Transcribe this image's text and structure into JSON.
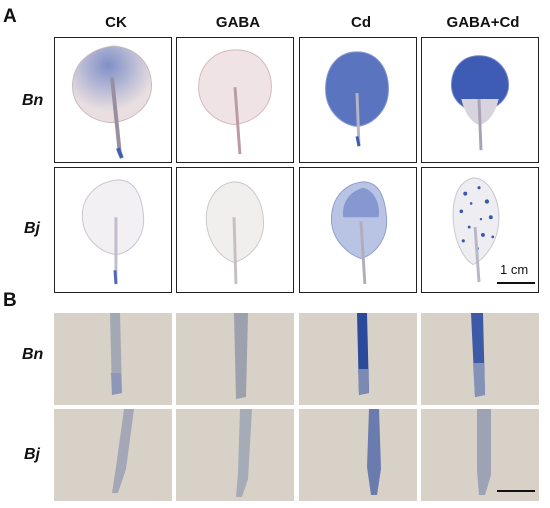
{
  "panels": {
    "a_label": "A",
    "b_label": "B"
  },
  "columns": [
    "CK",
    "GABA",
    "Cd",
    "GABA+Cd"
  ],
  "rows": [
    "Bn",
    "Bj"
  ],
  "scale": {
    "leaf_label": "1 cm"
  },
  "colors": {
    "stain_blue": "#2f4fa8",
    "root_bg": "#d7d1c7",
    "border": "#222222"
  }
}
